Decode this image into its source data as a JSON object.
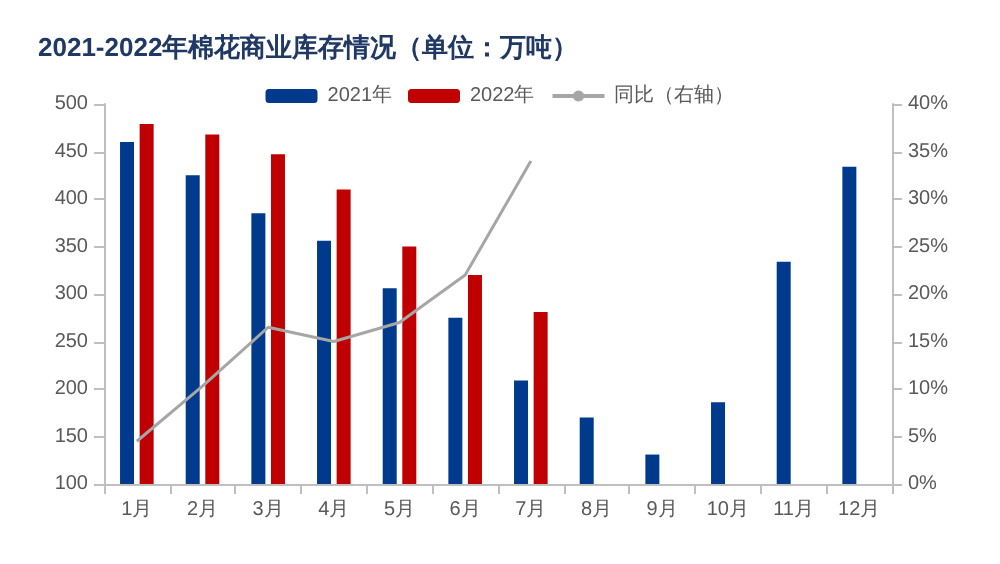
{
  "chart_data": {
    "type": "bar",
    "title": "2021-2022年棉花商业库存情况（单位：万吨）",
    "categories": [
      "1月",
      "2月",
      "3月",
      "4月",
      "5月",
      "6月",
      "7月",
      "8月",
      "9月",
      "10月",
      "11月",
      "12月"
    ],
    "series": [
      {
        "name": "2021年",
        "color": "#003a8c",
        "values": [
          460,
          425,
          385,
          356,
          306,
          275,
          209,
          170,
          131,
          186,
          334,
          434
        ]
      },
      {
        "name": "2022年",
        "color": "#c00000",
        "values": [
          479,
          468,
          447,
          410,
          350,
          320,
          281,
          null,
          null,
          null,
          null,
          null
        ]
      },
      {
        "name": "同比（右轴）",
        "type": "line",
        "axis": "y2",
        "color": "#a6a6a6",
        "values": [
          4.5,
          10.3,
          16.5,
          15,
          17,
          22,
          34,
          null,
          null,
          null,
          null,
          null
        ]
      }
    ],
    "ylim": [
      100,
      500
    ],
    "yticks": [
      100,
      150,
      200,
      250,
      300,
      350,
      400,
      450,
      500
    ],
    "y2lim": [
      0,
      40
    ],
    "y2ticks": [
      {
        "value": 0,
        "label": "0%"
      },
      {
        "value": 5,
        "label": "5%"
      },
      {
        "value": 10,
        "label": "10%"
      },
      {
        "value": 15,
        "label": "15%"
      },
      {
        "value": 20,
        "label": "20%"
      },
      {
        "value": 25,
        "label": "25%"
      },
      {
        "value": 30,
        "label": "30%"
      },
      {
        "value": 35,
        "label": "35%"
      },
      {
        "value": 40,
        "label": "40%"
      }
    ],
    "legend": "top",
    "grid": false,
    "marker": "none"
  }
}
